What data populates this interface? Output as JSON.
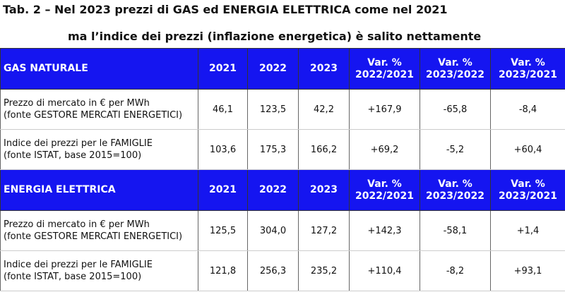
{
  "title": [
    "Tab. 2 – Nel 2023 prezzi di GAS ed ENERGIA ELETTRICA come nel 2021",
    "ma l’indice dei prezzi (inflazione energetica) è salito nettamente"
  ],
  "sections": [
    {
      "header": [
        [
          "GAS NATURALE"
        ],
        [
          "2021"
        ],
        [
          "2022"
        ],
        [
          "2023"
        ],
        [
          "Var. %",
          "2022/2021"
        ],
        [
          "Var. %",
          "2023/2022"
        ],
        [
          "Var. %",
          "2023/2021"
        ]
      ],
      "rows": [
        [
          [
            "Prezzo di mercato in € per MWh",
            "(fonte GESTORE MERCATI ENERGETICI)"
          ],
          [
            "46,1"
          ],
          [
            "123,5"
          ],
          [
            "42,2"
          ],
          [
            "+167,9"
          ],
          [
            "-65,8"
          ],
          [
            "-8,4"
          ]
        ],
        [
          [
            "Indice dei prezzi per le FAMIGLIE",
            "(fonte ISTAT, base 2015=100)"
          ],
          [
            "103,6"
          ],
          [
            "175,3"
          ],
          [
            "166,2"
          ],
          [
            "+69,2"
          ],
          [
            "-5,2"
          ],
          [
            "+60,4"
          ]
        ]
      ]
    },
    {
      "header": [
        [
          "ENERGIA ELETTRICA"
        ],
        [
          "2021"
        ],
        [
          "2022"
        ],
        [
          "2023"
        ],
        [
          "Var. %",
          "2022/2021"
        ],
        [
          "Var. %",
          "2023/2022"
        ],
        [
          "Var. %",
          "2023/2021"
        ]
      ],
      "rows": [
        [
          [
            "Prezzo di mercato in € per MWh",
            "(fonte GESTORE MERCATI ENERGETICI)"
          ],
          [
            "125,5"
          ],
          [
            "304,0"
          ],
          [
            "127,2"
          ],
          [
            "+142,3"
          ],
          [
            "-58,1"
          ],
          [
            "+1,4"
          ]
        ],
        [
          [
            "Indice dei prezzi per le FAMIGLIE",
            "(fonte ISTAT, base 2015=100)"
          ],
          [
            "121,8"
          ],
          [
            "256,3"
          ],
          [
            "235,2"
          ],
          [
            "+110,4"
          ],
          [
            "-8,2"
          ],
          [
            "+93,1"
          ]
        ]
      ]
    }
  ]
}
